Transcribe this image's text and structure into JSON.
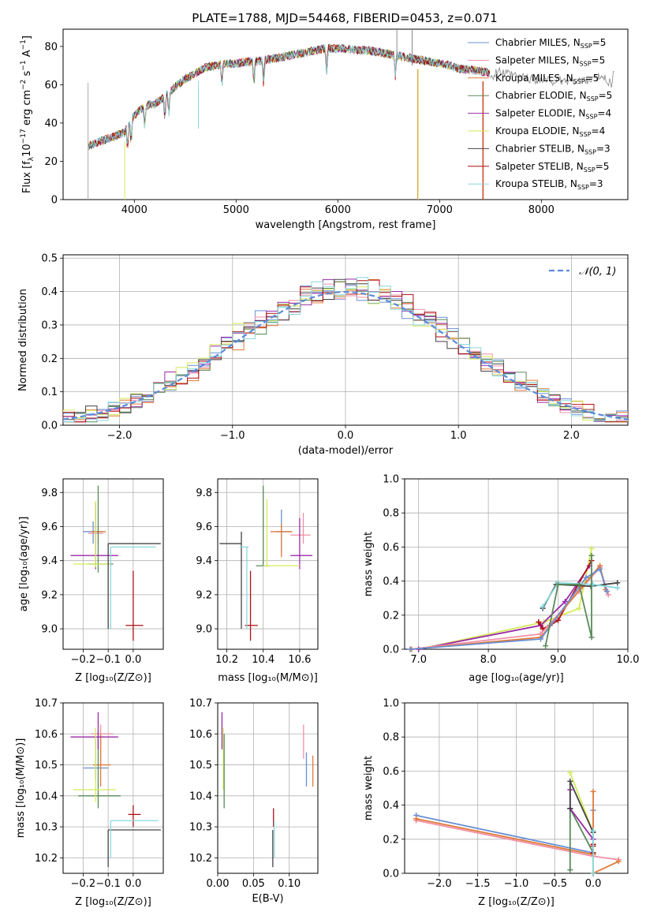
{
  "figure": {
    "title": "PLATE=1788, MJD=54468, FIBERID=0453, z=0.071"
  },
  "colors": {
    "Chabrier MILES": "#6a8fd6",
    "Salpeter MILES": "#f08fa6",
    "Kroupa MILES": "#e07b39",
    "Chabrier ELODIE": "#5a8a5a",
    "Salpeter ELODIE": "#9b2aa8",
    "Kroupa ELODIE": "#d6ea5a",
    "Chabrier STELIB": "#444444",
    "Salpeter STELIB": "#b00f16",
    "Kroupa STELIB": "#88d8de"
  },
  "chart_data": [
    {
      "id": "spectrum",
      "type": "line",
      "xlabel": "wavelength [Angstrom, rest frame]",
      "ylabel": "Flux [f_λ 10^-17 erg cm^-2 s^-1 A^-1]",
      "xlim": [
        3300,
        8850
      ],
      "ylim": [
        0,
        89
      ],
      "xticks": [
        4000,
        5000,
        6000,
        7000,
        8000
      ],
      "yticks": [
        0,
        20,
        40,
        60,
        80
      ],
      "legend": "top-right",
      "continuum": [
        [
          3550,
          28
        ],
        [
          3700,
          31
        ],
        [
          3800,
          33
        ],
        [
          3900,
          35
        ],
        [
          4000,
          44
        ],
        [
          4100,
          49
        ],
        [
          4200,
          50
        ],
        [
          4300,
          54
        ],
        [
          4400,
          59
        ],
        [
          4500,
          63
        ],
        [
          4600,
          66
        ],
        [
          4700,
          69
        ],
        [
          4800,
          70
        ],
        [
          4900,
          71
        ],
        [
          5000,
          71
        ],
        [
          5100,
          72
        ],
        [
          5200,
          72
        ],
        [
          5300,
          73
        ],
        [
          5400,
          74
        ],
        [
          5500,
          75
        ],
        [
          5600,
          76
        ],
        [
          5700,
          77
        ],
        [
          5800,
          78
        ],
        [
          5900,
          79
        ],
        [
          6000,
          79
        ],
        [
          6100,
          79
        ],
        [
          6200,
          78
        ],
        [
          6300,
          78
        ],
        [
          6400,
          77
        ],
        [
          6500,
          76
        ],
        [
          6600,
          75
        ],
        [
          6700,
          74
        ],
        [
          6800,
          73
        ],
        [
          6900,
          72
        ],
        [
          7000,
          71
        ],
        [
          7100,
          70
        ],
        [
          7200,
          68
        ],
        [
          7300,
          68
        ],
        [
          7400,
          67
        ],
        [
          7500,
          66
        ]
      ],
      "model_end": [
        [
          7550,
          67
        ],
        [
          7700,
          65
        ],
        [
          7900,
          63
        ],
        [
          8100,
          62
        ],
        [
          8300,
          62
        ],
        [
          8500,
          63
        ],
        [
          8600,
          64
        ],
        [
          8700,
          60
        ]
      ],
      "series": [
        {
          "name": "Chabrier MILES, N_SSP=5",
          "label_main": "Chabrier MILES, N",
          "sub": "SSP",
          "label_tail": "=5"
        },
        {
          "name": "Salpeter MILES, N_SSP=5",
          "label_main": "Salpeter MILES, N",
          "sub": "SSP",
          "label_tail": "=5"
        },
        {
          "name": "Kroupa MILES, N_SSP=5",
          "label_main": "Kroupa MILES, N",
          "sub": "SSP",
          "label_tail": "=5"
        },
        {
          "name": "Chabrier ELODIE, N_SSP=5",
          "label_main": "Chabrier ELODIE, N",
          "sub": "SSP",
          "label_tail": "=5"
        },
        {
          "name": "Salpeter ELODIE, N_SSP=4",
          "label_main": "Salpeter ELODIE, N",
          "sub": "SSP",
          "label_tail": "=4"
        },
        {
          "name": "Kroupa ELODIE, N_SSP=4",
          "label_main": "Kroupa ELODIE, N",
          "sub": "SSP",
          "label_tail": "=4"
        },
        {
          "name": "Chabrier STELIB, N_SSP=3",
          "label_main": "Chabrier STELIB, N",
          "sub": "SSP",
          "label_tail": "=3"
        },
        {
          "name": "Salpeter STELIB, N_SSP=5",
          "label_main": "Salpeter STELIB, N",
          "sub": "SSP",
          "label_tail": "=5"
        },
        {
          "name": "Kroupa STELIB, N_SSP=3",
          "label_main": "Kroupa STELIB, N",
          "sub": "SSP",
          "label_tail": "=3"
        }
      ]
    },
    {
      "id": "residuals",
      "type": "line",
      "xlabel": "(data-model)/error",
      "ylabel": "Normed distribution",
      "xlim": [
        -2.5,
        2.5
      ],
      "ylim": [
        0,
        0.51
      ],
      "xticks": [
        -2,
        -1,
        0,
        1,
        2
      ],
      "yticks": [
        0.0,
        0.1,
        0.2,
        0.3,
        0.4,
        0.5
      ],
      "legend": "top-right",
      "gaussian": {
        "name": "𝒩(0, 1)",
        "mean": 0,
        "sigma": 1
      }
    },
    {
      "id": "age_vs_Z",
      "type": "scatter",
      "xlabel": "Z [log10(Z/Z⊙)]",
      "ylabel": "age [log10(age/yr)]",
      "xlim": [
        -0.28,
        0.12
      ],
      "ylim": [
        8.88,
        9.88
      ],
      "xticks": [
        -0.2,
        -0.1,
        0.0
      ],
      "yticks": [
        9.0,
        9.2,
        9.4,
        9.6,
        9.8
      ]
    },
    {
      "id": "age_vs_mass",
      "type": "scatter",
      "xlabel": "mass [log10(M/M⊙)]",
      "ylabel": "",
      "xlim": [
        10.15,
        10.7
      ],
      "ylim": [
        8.88,
        9.88
      ],
      "xticks": [
        10.2,
        10.4,
        10.6
      ],
      "yticks": [
        9.0,
        9.2,
        9.4,
        9.6,
        9.8
      ]
    },
    {
      "id": "massweight_vs_age",
      "type": "line",
      "xlabel": "age [log10(age/yr)]",
      "ylabel": "mass weight",
      "xlim": [
        6.8,
        10.0
      ],
      "ylim": [
        0,
        1.0
      ],
      "xticks": [
        7,
        8,
        9,
        10
      ],
      "yticks": [
        0.0,
        0.2,
        0.4,
        0.6,
        0.8,
        1.0
      ],
      "series": [
        {
          "name": "Kroupa ELODIE",
          "points": [
            [
              7.0,
              0.0
            ],
            [
              8.8,
              0.16
            ],
            [
              9.3,
              0.24
            ],
            [
              9.48,
              0.59
            ]
          ]
        },
        {
          "name": "Salpeter ELODIE",
          "points": [
            [
              7.0,
              0.0
            ],
            [
              8.75,
              0.14
            ],
            [
              9.1,
              0.28
            ],
            [
              9.45,
              0.49
            ]
          ]
        },
        {
          "name": "Salpeter STELIB",
          "points": [
            [
              8.72,
              0.16
            ],
            [
              8.78,
              0.12
            ],
            [
              8.88,
              0.14
            ],
            [
              9.0,
              0.17
            ],
            [
              9.48,
              0.52
            ]
          ]
        },
        {
          "name": "Salpeter MILES",
          "points": [
            [
              6.88,
              0.0
            ],
            [
              8.75,
              0.09
            ],
            [
              9.3,
              0.34
            ],
            [
              9.6,
              0.48
            ],
            [
              9.72,
              0.32
            ]
          ]
        },
        {
          "name": "Kroupa MILES",
          "points": [
            [
              6.9,
              0.0
            ],
            [
              8.75,
              0.07
            ],
            [
              9.35,
              0.37
            ],
            [
              9.6,
              0.49
            ],
            [
              9.68,
              0.35
            ]
          ]
        },
        {
          "name": "Chabrier MILES",
          "points": [
            [
              6.88,
              0.0
            ],
            [
              8.75,
              0.06
            ],
            [
              9.4,
              0.42
            ],
            [
              9.6,
              0.47
            ],
            [
              9.7,
              0.34
            ]
          ]
        },
        {
          "name": "Chabrier STELIB",
          "points": [
            [
              8.78,
              0.24
            ],
            [
              8.97,
              0.38
            ],
            [
              9.47,
              0.37
            ],
            [
              9.85,
              0.39
            ]
          ]
        },
        {
          "name": "Kroupa STELIB",
          "points": [
            [
              8.78,
              0.25
            ],
            [
              9.0,
              0.39
            ],
            [
              9.5,
              0.38
            ],
            [
              9.85,
              0.36
            ]
          ]
        },
        {
          "name": "Chabrier ELODIE",
          "points": [
            [
              8.82,
              0.02
            ],
            [
              9.0,
              0.38
            ],
            [
              9.3,
              0.38
            ],
            [
              9.48,
              0.07
            ],
            [
              9.48,
              0.55
            ]
          ]
        }
      ]
    },
    {
      "id": "mass_vs_Z",
      "type": "scatter",
      "xlabel": "Z [log10(Z/Z⊙)]",
      "ylabel": "mass [log10(M/M⊙)]",
      "xlim": [
        -0.28,
        0.12
      ],
      "ylim": [
        10.15,
        10.7
      ],
      "xticks": [
        -0.2,
        -0.1,
        0.0
      ],
      "yticks": [
        10.2,
        10.3,
        10.4,
        10.5,
        10.6,
        10.7
      ]
    },
    {
      "id": "mass_vs_ebv",
      "type": "scatter",
      "xlabel": "E(B-V)",
      "ylabel": "",
      "xlim": [
        0.0,
        0.14
      ],
      "ylim": [
        10.15,
        10.7
      ],
      "xticks": [
        0.0,
        0.05,
        0.1
      ],
      "xticklabels": [
        "0.00",
        "0.05",
        "0.10"
      ],
      "yticks": [
        10.2,
        10.3,
        10.4,
        10.5,
        10.6,
        10.7
      ]
    },
    {
      "id": "massweight_vs_Z",
      "type": "line",
      "xlabel": "Z [log10(Z/Z⊙)]",
      "ylabel": "mass weight",
      "xlim": [
        -2.45,
        0.45
      ],
      "ylim": [
        0,
        1.0
      ],
      "xticks": [
        -2.0,
        -1.5,
        -1.0,
        -0.5,
        0.0
      ],
      "yticks": [
        0.0,
        0.2,
        0.4,
        0.6,
        0.8,
        1.0
      ],
      "series": [
        {
          "name": "Chabrier MILES",
          "points": [
            [
              -2.3,
              0.34
            ],
            [
              0.0,
              0.12
            ],
            [
              0.0,
              0.37
            ]
          ]
        },
        {
          "name": "Salpeter MILES",
          "points": [
            [
              -2.3,
              0.31
            ],
            [
              0.0,
              0.1
            ],
            [
              0.33,
              0.08
            ]
          ]
        },
        {
          "name": "Kroupa MILES",
          "points": [
            [
              -2.3,
              0.32
            ],
            [
              0.0,
              0.11
            ],
            [
              0.0,
              0.0
            ],
            [
              0.33,
              0.07
            ],
            [
              0.0,
              0.0
            ],
            [
              0.0,
              0.48
            ]
          ]
        },
        {
          "name": "Chabrier ELODIE",
          "points": [
            [
              -0.3,
              0.02
            ],
            [
              -0.3,
              0.38
            ],
            [
              0.0,
              0.12
            ]
          ]
        },
        {
          "name": "Salpeter ELODIE",
          "points": [
            [
              -0.3,
              0.49
            ],
            [
              -0.3,
              0.38
            ],
            [
              0.0,
              0.2
            ]
          ]
        },
        {
          "name": "Kroupa ELODIE",
          "points": [
            [
              -0.3,
              0.59
            ],
            [
              0.0,
              0.24
            ]
          ]
        },
        {
          "name": "Chabrier STELIB",
          "points": [
            [
              -0.3,
              0.38
            ],
            [
              -0.3,
              0.54
            ],
            [
              0.0,
              0.24
            ]
          ]
        },
        {
          "name": "Salpeter STELIB",
          "points": [
            [
              0.0,
              0.17
            ],
            [
              0.0,
              0.12
            ],
            [
              0.0,
              0.16
            ]
          ]
        },
        {
          "name": "Kroupa STELIB",
          "points": [
            [
              0.0,
              0.0
            ],
            [
              0.0,
              0.25
            ]
          ]
        }
      ]
    }
  ]
}
